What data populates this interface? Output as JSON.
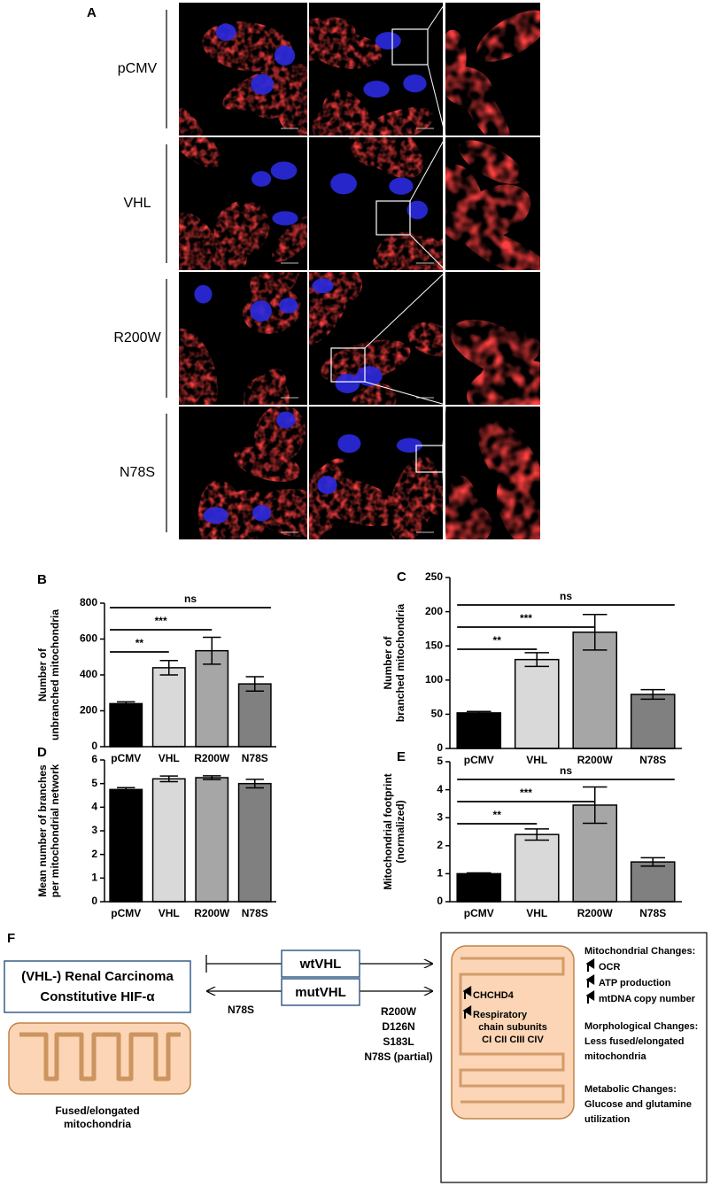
{
  "figure_a": {
    "panel": "A",
    "rows": [
      "pCMV",
      "VHL",
      "R200W",
      "N78S"
    ]
  },
  "chart_data": [
    {
      "type": "bar",
      "panel": "B",
      "ylabel": [
        "Number of",
        "unbranched mitochondria"
      ],
      "categories": [
        "pCMV",
        "VHL",
        "R200W",
        "N78S"
      ],
      "values": [
        240,
        440,
        535,
        350
      ],
      "errors": [
        10,
        40,
        75,
        40
      ],
      "colors": [
        "#000000",
        "#d9d9d9",
        "#a6a6a6",
        "#808080"
      ],
      "ylim": [
        0,
        800
      ],
      "yticks": [
        0,
        200,
        400,
        600,
        800
      ],
      "annotations": [
        "**",
        "***",
        "ns"
      ]
    },
    {
      "type": "bar",
      "panel": "C",
      "ylabel": [
        "Number of",
        "branched mitochondria"
      ],
      "categories": [
        "pCMV",
        "VHL",
        "R200W",
        "N78S"
      ],
      "values": [
        52,
        130,
        170,
        79
      ],
      "errors": [
        2,
        10,
        26,
        7
      ],
      "colors": [
        "#000000",
        "#d9d9d9",
        "#a6a6a6",
        "#808080"
      ],
      "ylim": [
        0,
        250
      ],
      "yticks": [
        0,
        50,
        100,
        150,
        200,
        250
      ],
      "annotations": [
        "**",
        "***",
        "ns"
      ]
    },
    {
      "type": "bar",
      "panel": "D",
      "ylabel": [
        "Mean number of branches",
        "per mitochondrial network"
      ],
      "categories": [
        "pCMV",
        "VHL",
        "R200W",
        "N78S"
      ],
      "values": [
        4.75,
        5.2,
        5.25,
        5.0
      ],
      "errors": [
        0.08,
        0.12,
        0.08,
        0.18
      ],
      "colors": [
        "#000000",
        "#d9d9d9",
        "#a6a6a6",
        "#808080"
      ],
      "ylim": [
        0,
        6
      ],
      "yticks": [
        0,
        1,
        2,
        3,
        4,
        5,
        6
      ]
    },
    {
      "type": "bar",
      "panel": "E",
      "ylabel": [
        "Mitochondrial footprint",
        "(normalized)"
      ],
      "categories": [
        "pCMV",
        "VHL",
        "R200W",
        "N78S"
      ],
      "values": [
        1.0,
        2.4,
        3.45,
        1.42
      ],
      "errors": [
        0.03,
        0.2,
        0.65,
        0.15
      ],
      "colors": [
        "#000000",
        "#d9d9d9",
        "#a6a6a6",
        "#808080"
      ],
      "ylim": [
        0,
        5
      ],
      "yticks": [
        0,
        1,
        2,
        3,
        4,
        5
      ],
      "annotations": [
        "**",
        "***",
        "ns"
      ]
    }
  ],
  "figure_f": {
    "panel": "F",
    "box_title": [
      "(VHL-) Renal Carcinoma",
      "Constitutive HIF-α"
    ],
    "left_caption": [
      "Fused/elongated",
      "mitochondria"
    ],
    "wt": "wtVHL",
    "mut": "mutVHL",
    "reverse_label": "N78S",
    "mutants": [
      "R200W",
      "D126N",
      "S183L",
      "N78S (partial)"
    ],
    "inner": {
      "chchd4": "CHCHD4",
      "resp": [
        "Respiratory",
        "chain subunits",
        "CI CII CIII CIV"
      ]
    },
    "mito_title": "Mitochondrial Changes:",
    "mito_items": [
      "OCR",
      "ATP production",
      "mtDNA copy number"
    ],
    "morph_title": "Morphological Changes:",
    "morph_items": [
      "Less fused/elongated",
      "mitochondria"
    ],
    "metab_title": "Metabolic Changes:",
    "metab_items": [
      "Glucose and glutamine",
      "utilization"
    ]
  }
}
